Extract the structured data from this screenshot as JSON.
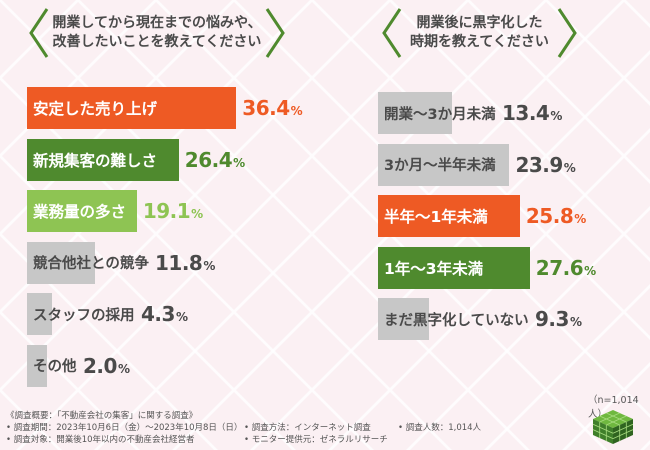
{
  "left_chart": {
    "title_line1": "開業してから現在までの悩みや、",
    "title_line2": "改善したいことを教えてください",
    "pct_sign": "%"
  },
  "right_chart": {
    "title_line1": "開業後に黒字化した",
    "title_line2": "時期を教えてください",
    "pct_sign": "%"
  },
  "colors": {
    "orange": "#ee5a24",
    "dark_green": "#4f8a2e",
    "light_green": "#8ec453",
    "gray": "#c7c7c7"
  },
  "chart_data": [
    {
      "type": "bar",
      "orientation": "horizontal",
      "title": "開業してから現在までの悩みや、改善したいことを教えてください",
      "categories": [
        "安定した売り上げ",
        "新規集客の難しさ",
        "業務量の多さ",
        "競合他社との競争",
        "スタッフの採用",
        "その他"
      ],
      "values": [
        36.4,
        26.4,
        19.1,
        11.8,
        4.3,
        2.0
      ],
      "labels": [
        "36.4",
        "26.4",
        "19.1",
        "11.8",
        "4.3",
        "2.0"
      ],
      "unit": "%",
      "bar_colors": [
        "orange",
        "dark_green",
        "light_green",
        "gray",
        "gray",
        "gray"
      ],
      "text_colors": [
        "#ee5a24",
        "#4f8a2e",
        "#8ec453",
        "#4a4a4a",
        "#4a4a4a",
        "#4a4a4a"
      ],
      "xlim": [
        0,
        40
      ]
    },
    {
      "type": "bar",
      "orientation": "horizontal",
      "title": "開業後に黒字化した時期を教えてください",
      "categories": [
        "開業〜3か月未満",
        "3か月〜半年未満",
        "半年〜1年未満",
        "1年〜3年未満",
        "まだ黒字化していない"
      ],
      "values": [
        13.4,
        23.9,
        25.8,
        27.6,
        9.3
      ],
      "labels": [
        "13.4",
        "23.9",
        "25.8",
        "27.6",
        "9.3"
      ],
      "unit": "%",
      "bar_colors": [
        "gray",
        "gray",
        "orange",
        "dark_green",
        "gray"
      ],
      "text_colors": [
        "#4a4a4a",
        "#4a4a4a",
        "#ee5a24",
        "#4f8a2e",
        "#4a4a4a"
      ],
      "xlim": [
        0,
        40
      ]
    }
  ],
  "footnotes": {
    "overview": "《調査概要：「不動産会社の集客」に関する調査》",
    "period": "• 調査期間：2023年10月6日（金）〜2023年10月8日（日）",
    "target": "• 調査対象：開業後10年以内の不動産会社経営者",
    "method": "• 調査方法：インターネット調査",
    "provider": "• モニター提供元：ゼネラルリサーチ",
    "count": "• 調査人数：1,014人"
  },
  "sample_size": "（n=1,014人）",
  "logo": "logo-cube-icon"
}
